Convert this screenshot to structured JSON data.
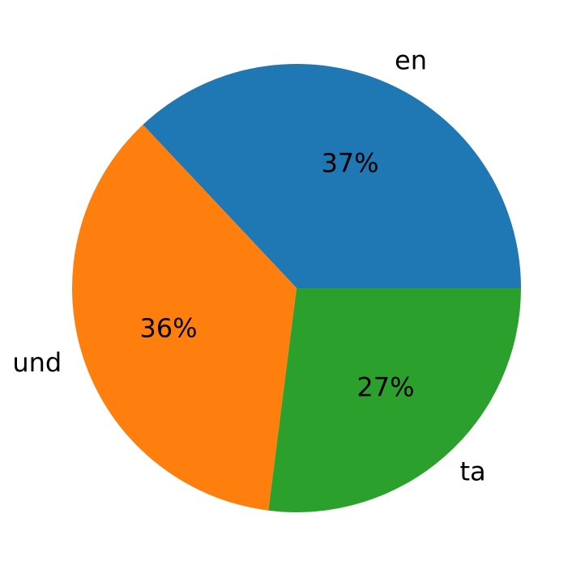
{
  "chart_data": {
    "type": "pie",
    "categories": [
      "en",
      "und",
      "ta"
    ],
    "values": [
      37,
      36,
      27
    ],
    "value_labels": [
      "37%",
      "36%",
      "27%"
    ],
    "colors": [
      "#1f77b4",
      "#ff7f0e",
      "#2ca02c"
    ]
  }
}
